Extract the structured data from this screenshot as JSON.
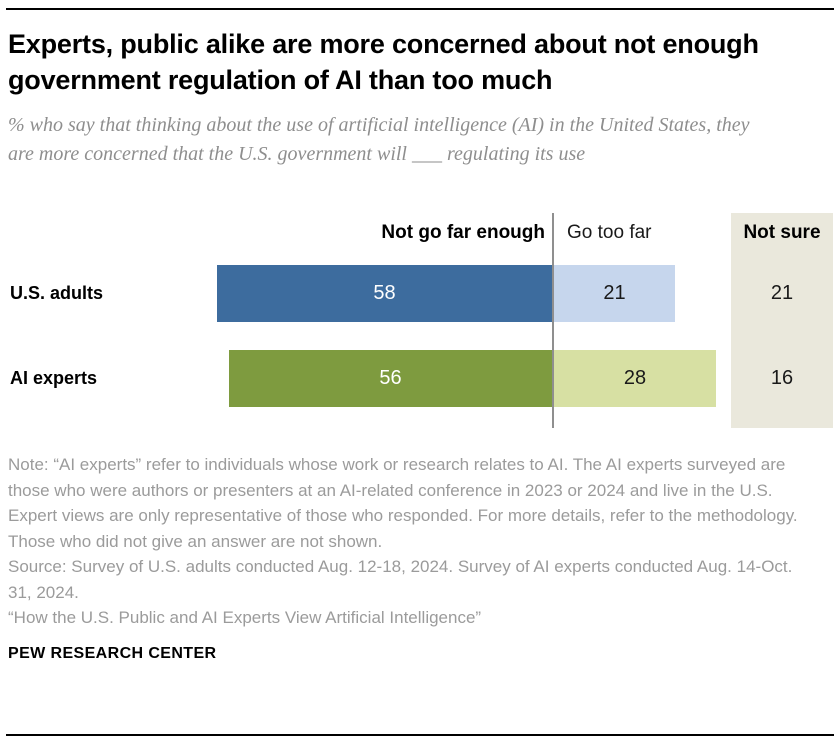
{
  "header": {
    "title": "Experts, public alike are more concerned about not enough government regulation of AI than too much",
    "subtitle": "% who say that thinking about the use of artificial intelligence (AI) in the United States, they are more concerned that the U.S. government will ___ regulating its use"
  },
  "chart_data": {
    "type": "bar",
    "orientation": "horizontal",
    "categories": [
      "U.S. adults",
      "AI experts"
    ],
    "series": [
      {
        "name": "Not go far enough",
        "values": [
          58,
          56
        ]
      },
      {
        "name": "Go too far",
        "values": [
          21,
          28
        ]
      },
      {
        "name": "Not sure",
        "values": [
          21,
          16
        ]
      }
    ],
    "colors": {
      "rows": [
        {
          "main": "#3d6c9e",
          "secondary": "#c6d6ed",
          "value_on_main": "#ffffff",
          "value_on_secondary": "#1a1a1a"
        },
        {
          "main": "#7e9b3f",
          "secondary": "#d7e0a3",
          "value_on_main": "#ffffff",
          "value_on_secondary": "#1a1a1a"
        }
      ],
      "not_sure_band": "#eae8dc",
      "divider": "#8f8f8f"
    },
    "layout": {
      "legend_position": "column-headers",
      "grid": false,
      "value_labels": "inside-bars",
      "not_sure_shown_as": "separate-shaded-column"
    }
  },
  "notes": {
    "note": "Note: “AI experts” refer to individuals whose work or research relates to AI. The AI experts surveyed are those who were authors or presenters at an AI-related conference in 2023 or 2024 and live in the U.S. Expert views are only representative of those who responded. For more details, refer to the methodology. Those who did not give an answer are not shown.",
    "source": "Source: Survey of U.S. adults conducted Aug. 12-18, 2024. Survey of AI experts conducted Aug. 14-Oct. 31, 2024.",
    "report": "“How the U.S. Public and AI Experts View Artificial Intelligence”"
  },
  "footer": {
    "brand": "PEW RESEARCH CENTER"
  }
}
